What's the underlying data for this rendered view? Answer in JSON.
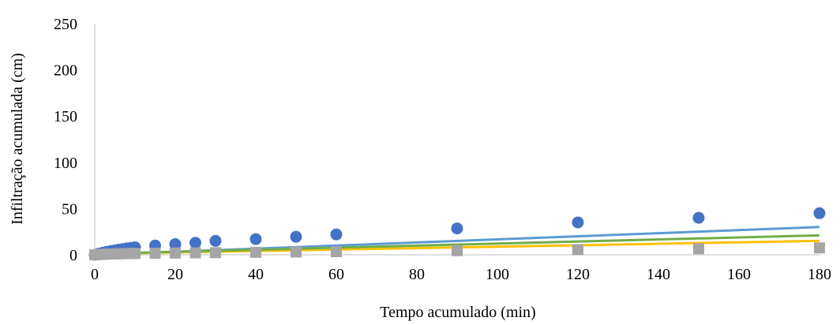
{
  "chart_data": {
    "type": "scatter",
    "title": "",
    "xlabel": "Tempo acumulado (min)",
    "ylabel": "Infiltração acumulada (cm)",
    "xlim": [
      0,
      180
    ],
    "ylim": [
      0,
      250
    ],
    "xticks": [
      "0",
      "20",
      "40",
      "60",
      "80",
      "100",
      "120",
      "140",
      "160",
      "180"
    ],
    "yticks": [
      "0",
      "50",
      "100",
      "150",
      "200",
      "250"
    ],
    "grid": false,
    "legend": "none",
    "series": [
      {
        "kind": "scatter",
        "marker": "circle",
        "color": "#4472C4",
        "x": [
          0,
          1,
          2,
          3,
          4,
          5,
          6,
          7,
          8,
          9,
          10,
          15,
          20,
          25,
          30,
          40,
          50,
          60,
          90,
          120,
          150,
          180
        ],
        "y": [
          0,
          1.2,
          2.2,
          3.2,
          4.0,
          4.8,
          5.5,
          6.2,
          6.9,
          7.5,
          8.1,
          10,
          11.5,
          13,
          15,
          17,
          19.5,
          22,
          28.5,
          35,
          40,
          45
        ]
      },
      {
        "kind": "scatter",
        "marker": "square",
        "color": "#A5A5A5",
        "x": [
          0,
          1,
          2,
          3,
          4,
          5,
          6,
          7,
          8,
          9,
          10,
          15,
          20,
          25,
          30,
          40,
          50,
          60,
          90,
          120,
          150,
          180
        ],
        "y": [
          0,
          0.3,
          0.5,
          0.7,
          0.9,
          1.0,
          1.1,
          1.2,
          1.3,
          1.4,
          1.5,
          1.7,
          1.9,
          2.1,
          2.3,
          2.7,
          3.0,
          3.4,
          4.5,
          5.6,
          6.6,
          7.5
        ]
      },
      {
        "kind": "line",
        "color": "#5B9BD5",
        "x": [
          0,
          180
        ],
        "y": [
          0,
          30
        ]
      },
      {
        "kind": "line",
        "color": "#FFC000",
        "x": [
          0,
          180
        ],
        "y": [
          1,
          15
        ]
      },
      {
        "kind": "line",
        "color": "#70AD47",
        "x": [
          0,
          180
        ],
        "y": [
          1,
          21
        ]
      }
    ]
  }
}
